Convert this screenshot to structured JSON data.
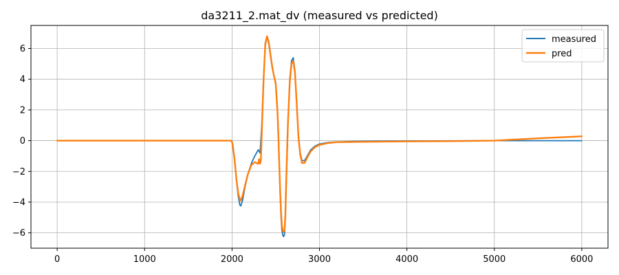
{
  "chart_data": {
    "type": "line",
    "title": "da3211_2.mat_dv  (measured vs predicted)",
    "xlabel": "",
    "ylabel": "",
    "xlim": [
      -300,
      6300
    ],
    "ylim": [
      -7,
      7.5
    ],
    "xticks": [
      0,
      1000,
      2000,
      3000,
      4000,
      5000,
      6000
    ],
    "yticks": [
      -6,
      -4,
      -2,
      0,
      2,
      4,
      6
    ],
    "grid": true,
    "legend_position": "top-right",
    "series": [
      {
        "name": "measured",
        "color": "#1f77b4",
        "x": [
          0,
          500,
          1000,
          1500,
          1990,
          2000,
          2010,
          2030,
          2050,
          2070,
          2090,
          2100,
          2120,
          2150,
          2180,
          2220,
          2260,
          2300,
          2320,
          2340,
          2360,
          2380,
          2400,
          2420,
          2440,
          2460,
          2480,
          2500,
          2520,
          2530,
          2540,
          2550,
          2560,
          2570,
          2580,
          2590,
          2600,
          2610,
          2620,
          2640,
          2660,
          2680,
          2700,
          2720,
          2740,
          2760,
          2780,
          2800,
          2830,
          2860,
          2900,
          2950,
          3000,
          3100,
          3200,
          3400,
          3600,
          4000,
          4500,
          5000,
          5500,
          6000
        ],
        "y": [
          0,
          0,
          0,
          0,
          0,
          -0.05,
          -0.3,
          -1.2,
          -2.5,
          -3.6,
          -4.2,
          -4.25,
          -3.9,
          -3.0,
          -2.2,
          -1.5,
          -1.0,
          -0.6,
          -0.8,
          1.0,
          4.0,
          6.2,
          6.75,
          6.3,
          5.5,
          4.7,
          4.2,
          3.8,
          2.0,
          0.5,
          -1.5,
          -3.5,
          -5.0,
          -5.8,
          -6.15,
          -6.25,
          -6.1,
          -5.0,
          -3.0,
          1.0,
          4.0,
          5.2,
          5.4,
          4.5,
          2.5,
          0.3,
          -0.8,
          -1.3,
          -1.3,
          -1.0,
          -0.6,
          -0.35,
          -0.22,
          -0.12,
          -0.08,
          -0.05,
          -0.03,
          -0.02,
          -0.01,
          0.0,
          0.0,
          0.0
        ]
      },
      {
        "name": "pred",
        "color": "#ff7f0e",
        "x": [
          0,
          500,
          1000,
          1500,
          1990,
          2000,
          2010,
          2030,
          2050,
          2070,
          2090,
          2100,
          2120,
          2150,
          2180,
          2220,
          2260,
          2300,
          2310,
          2320,
          2330,
          2340,
          2360,
          2380,
          2400,
          2420,
          2440,
          2460,
          2480,
          2500,
          2520,
          2530,
          2540,
          2550,
          2560,
          2570,
          2580,
          2590,
          2600,
          2610,
          2620,
          2640,
          2660,
          2680,
          2700,
          2720,
          2740,
          2760,
          2780,
          2800,
          2830,
          2860,
          2900,
          2950,
          3000,
          3100,
          3200,
          3400,
          3600,
          4000,
          4500,
          5000,
          5500,
          6000
        ],
        "y": [
          0,
          0,
          0,
          0,
          0,
          -0.1,
          -0.4,
          -1.3,
          -2.5,
          -3.4,
          -3.85,
          -3.9,
          -3.6,
          -2.9,
          -2.2,
          -1.6,
          -1.4,
          -1.5,
          -1.2,
          -1.5,
          -1.3,
          0.5,
          3.8,
          6.3,
          6.8,
          6.4,
          5.6,
          4.8,
          4.2,
          3.7,
          1.8,
          0.3,
          -1.5,
          -3.2,
          -4.6,
          -5.5,
          -5.85,
          -5.95,
          -5.8,
          -4.8,
          -2.5,
          1.2,
          3.8,
          5.0,
          5.2,
          4.4,
          2.4,
          0.2,
          -0.9,
          -1.45,
          -1.45,
          -1.1,
          -0.7,
          -0.42,
          -0.28,
          -0.15,
          -0.1,
          -0.08,
          -0.07,
          -0.05,
          -0.03,
          0.0,
          0.15,
          0.28
        ]
      }
    ]
  }
}
